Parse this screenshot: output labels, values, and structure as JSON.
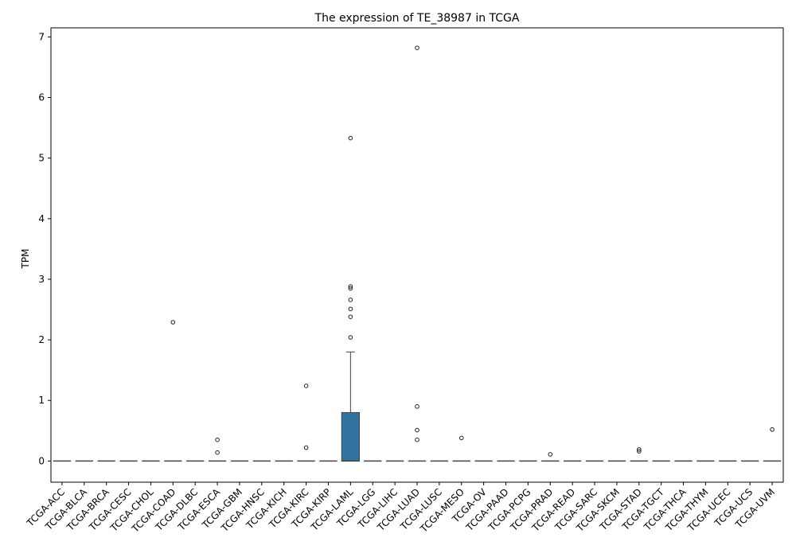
{
  "chart_data": {
    "type": "box",
    "title": "The expression of TE_38987 in TCGA",
    "xlabel": "",
    "ylabel": "TPM",
    "ylim": [
      -0.35,
      7.15
    ],
    "yticks": [
      0,
      1,
      2,
      3,
      4,
      5,
      6,
      7
    ],
    "grid": false,
    "box_color": "#3274a1",
    "categories": [
      "TCGA-ACC",
      "TCGA-BLCA",
      "TCGA-BRCA",
      "TCGA-CESC",
      "TCGA-CHOL",
      "TCGA-COAD",
      "TCGA-DLBC",
      "TCGA-ESCA",
      "TCGA-GBM",
      "TCGA-HNSC",
      "TCGA-KICH",
      "TCGA-KIRC",
      "TCGA-KIRP",
      "TCGA-LAML",
      "TCGA-LGG",
      "TCGA-LIHC",
      "TCGA-LUAD",
      "TCGA-LUSC",
      "TCGA-MESO",
      "TCGA-OV",
      "TCGA-PAAD",
      "TCGA-PCPG",
      "TCGA-PRAD",
      "TCGA-READ",
      "TCGA-SARC",
      "TCGA-SKCM",
      "TCGA-STAD",
      "TCGA-TGCT",
      "TCGA-THCA",
      "TCGA-THYM",
      "TCGA-UCEC",
      "TCGA-UCS",
      "TCGA-UVM"
    ],
    "boxes": [
      {
        "min": 0,
        "q1": 0,
        "median": 0,
        "q3": 0,
        "max": 0,
        "outliers": []
      },
      {
        "min": 0,
        "q1": 0,
        "median": 0,
        "q3": 0,
        "max": 0,
        "outliers": []
      },
      {
        "min": 0,
        "q1": 0,
        "median": 0,
        "q3": 0,
        "max": 0,
        "outliers": []
      },
      {
        "min": 0,
        "q1": 0,
        "median": 0,
        "q3": 0,
        "max": 0,
        "outliers": []
      },
      {
        "min": 0,
        "q1": 0,
        "median": 0,
        "q3": 0,
        "max": 0,
        "outliers": []
      },
      {
        "min": 0,
        "q1": 0,
        "median": 0,
        "q3": 0,
        "max": 0,
        "outliers": [
          2.29
        ]
      },
      {
        "min": 0,
        "q1": 0,
        "median": 0,
        "q3": 0,
        "max": 0,
        "outliers": []
      },
      {
        "min": 0,
        "q1": 0,
        "median": 0,
        "q3": 0,
        "max": 0,
        "outliers": [
          0.35,
          0.14
        ]
      },
      {
        "min": 0,
        "q1": 0,
        "median": 0,
        "q3": 0,
        "max": 0,
        "outliers": []
      },
      {
        "min": 0,
        "q1": 0,
        "median": 0,
        "q3": 0,
        "max": 0,
        "outliers": []
      },
      {
        "min": 0,
        "q1": 0,
        "median": 0,
        "q3": 0,
        "max": 0,
        "outliers": []
      },
      {
        "min": 0,
        "q1": 0,
        "median": 0,
        "q3": 0,
        "max": 0,
        "outliers": [
          1.24,
          0.22
        ]
      },
      {
        "min": 0,
        "q1": 0,
        "median": 0,
        "q3": 0,
        "max": 0,
        "outliers": []
      },
      {
        "min": 0,
        "q1": 0,
        "median": 0,
        "q3": 0.8,
        "max": 1.8,
        "outliers": [
          5.33,
          2.88,
          2.85,
          2.66,
          2.51,
          2.38,
          2.04
        ]
      },
      {
        "min": 0,
        "q1": 0,
        "median": 0,
        "q3": 0,
        "max": 0,
        "outliers": []
      },
      {
        "min": 0,
        "q1": 0,
        "median": 0,
        "q3": 0,
        "max": 0,
        "outliers": []
      },
      {
        "min": 0,
        "q1": 0,
        "median": 0,
        "q3": 0,
        "max": 0,
        "outliers": [
          6.82,
          0.9,
          0.51,
          0.35
        ]
      },
      {
        "min": 0,
        "q1": 0,
        "median": 0,
        "q3": 0,
        "max": 0,
        "outliers": []
      },
      {
        "min": 0,
        "q1": 0,
        "median": 0,
        "q3": 0,
        "max": 0,
        "outliers": [
          0.38
        ]
      },
      {
        "min": 0,
        "q1": 0,
        "median": 0,
        "q3": 0,
        "max": 0,
        "outliers": []
      },
      {
        "min": 0,
        "q1": 0,
        "median": 0,
        "q3": 0,
        "max": 0,
        "outliers": []
      },
      {
        "min": 0,
        "q1": 0,
        "median": 0,
        "q3": 0,
        "max": 0,
        "outliers": []
      },
      {
        "min": 0,
        "q1": 0,
        "median": 0,
        "q3": 0,
        "max": 0,
        "outliers": [
          0.11
        ]
      },
      {
        "min": 0,
        "q1": 0,
        "median": 0,
        "q3": 0,
        "max": 0,
        "outliers": []
      },
      {
        "min": 0,
        "q1": 0,
        "median": 0,
        "q3": 0,
        "max": 0,
        "outliers": []
      },
      {
        "min": 0,
        "q1": 0,
        "median": 0,
        "q3": 0,
        "max": 0,
        "outliers": []
      },
      {
        "min": 0,
        "q1": 0,
        "median": 0,
        "q3": 0,
        "max": 0,
        "outliers": [
          0.19,
          0.16
        ]
      },
      {
        "min": 0,
        "q1": 0,
        "median": 0,
        "q3": 0,
        "max": 0,
        "outliers": []
      },
      {
        "min": 0,
        "q1": 0,
        "median": 0,
        "q3": 0,
        "max": 0,
        "outliers": []
      },
      {
        "min": 0,
        "q1": 0,
        "median": 0,
        "q3": 0,
        "max": 0,
        "outliers": []
      },
      {
        "min": 0,
        "q1": 0,
        "median": 0,
        "q3": 0,
        "max": 0,
        "outliers": []
      },
      {
        "min": 0,
        "q1": 0,
        "median": 0,
        "q3": 0,
        "max": 0,
        "outliers": []
      },
      {
        "min": 0,
        "q1": 0,
        "median": 0,
        "q3": 0,
        "max": 0,
        "outliers": [
          0.52
        ]
      }
    ]
  }
}
